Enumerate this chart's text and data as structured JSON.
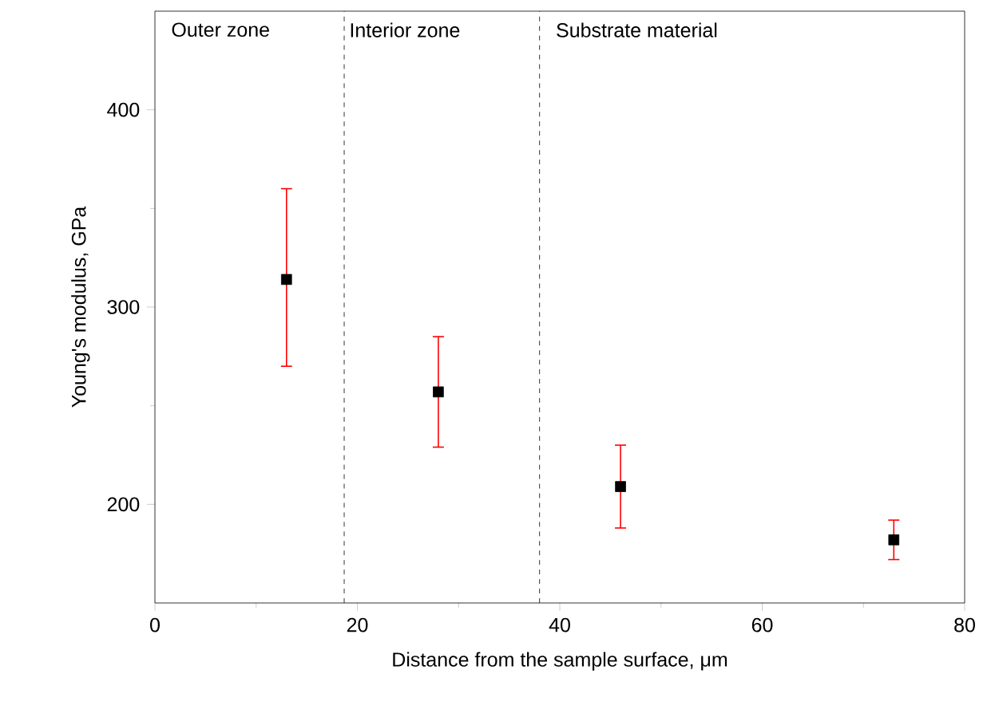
{
  "chart_data": {
    "type": "scatter",
    "xlabel": "Distance from the sample surface, μm",
    "ylabel": "Young's modulus,  GPa",
    "xlim": [
      0,
      80
    ],
    "xticks": [
      0,
      20,
      40,
      60,
      80
    ],
    "ylim": [
      150,
      450
    ],
    "yticks": [
      200,
      300,
      400
    ],
    "marker": "square",
    "grid": false,
    "series": [
      {
        "color": "#000000",
        "x": [
          13,
          28,
          46,
          73
        ],
        "values": [
          314,
          257,
          209,
          182
        ],
        "errors": [
          [
            270,
            360
          ],
          [
            229,
            285
          ],
          [
            188,
            230
          ],
          [
            172,
            192
          ]
        ]
      }
    ],
    "ref_lines": [
      {
        "axis": "x",
        "value": 18.7,
        "line_style": "dashed",
        "color": "#000000"
      },
      {
        "axis": "x",
        "value": 38,
        "line_style": "dashed",
        "color": "#000000"
      }
    ],
    "annotations": [
      "Outer zone",
      "Interior zone",
      "Substrate material"
    ]
  }
}
